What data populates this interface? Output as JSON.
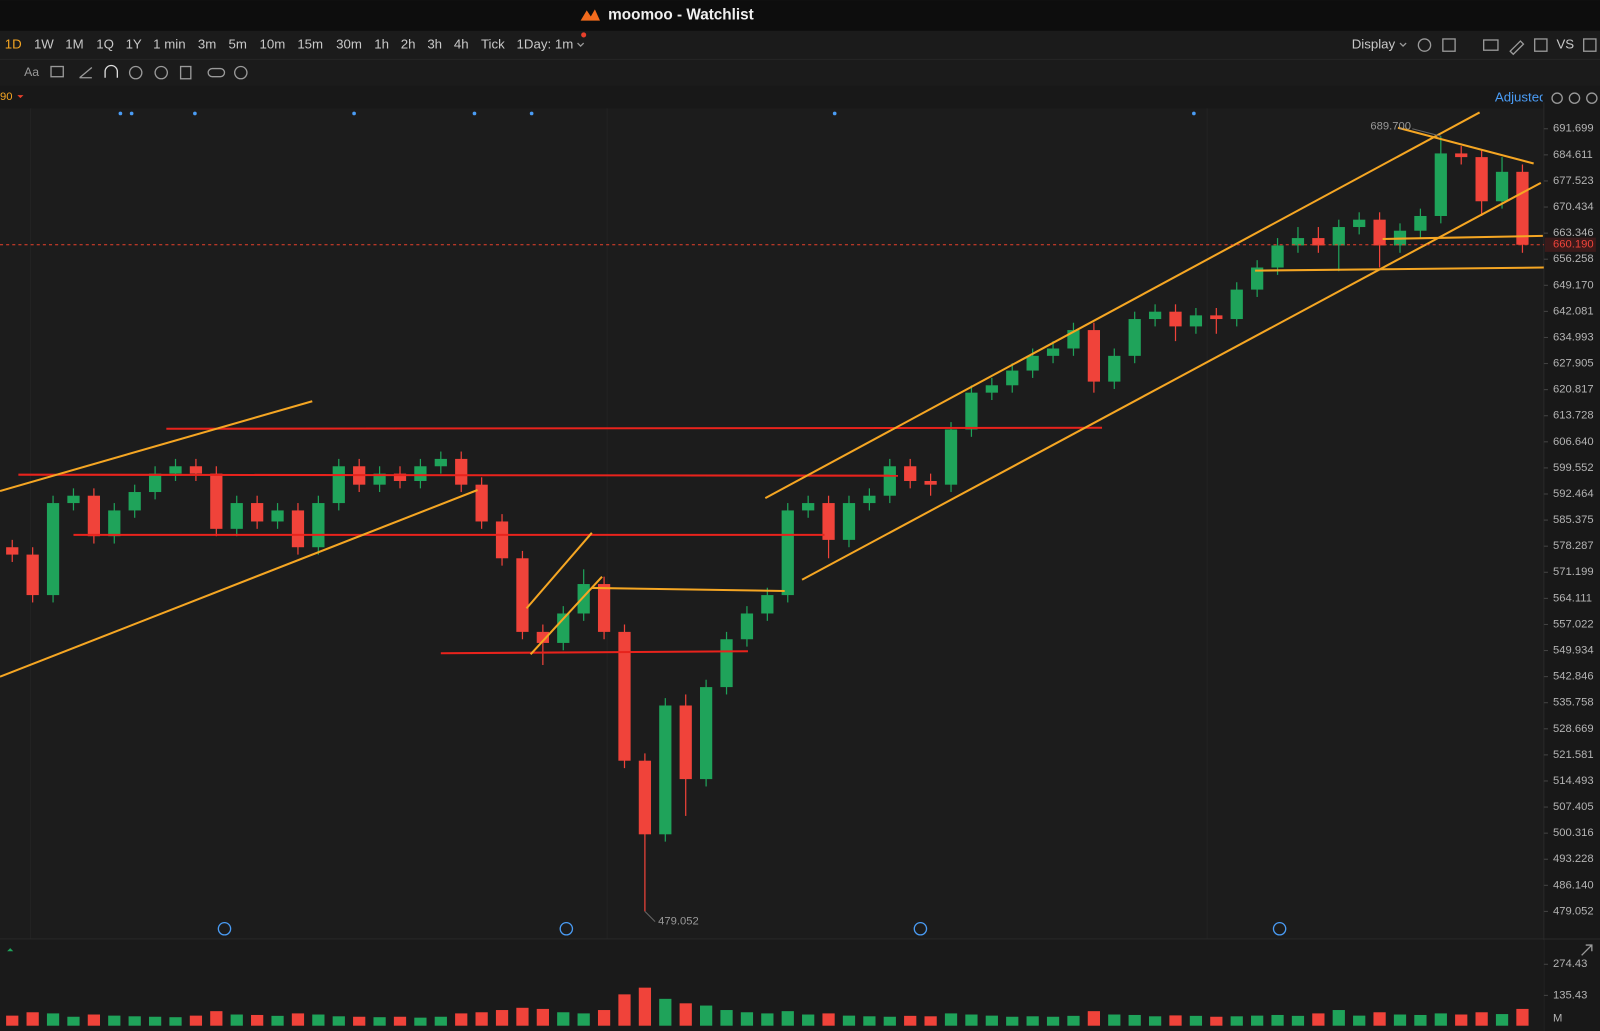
{
  "window": {
    "title": "moomoo - Watchlist"
  },
  "toolbar": {
    "periods": [
      "1D",
      "1W",
      "1M",
      "1Q",
      "1Y",
      "1 min",
      "3m",
      "5m",
      "10m",
      "15m",
      "30m",
      "1h",
      "2h",
      "3h",
      "4h",
      "Tick"
    ],
    "mode": "1Day: 1m",
    "display": "Display",
    "compare": "VS"
  },
  "drawing_tools": {
    "text_tool": "Aa"
  },
  "indicator": "90",
  "adjust": "Adjusted",
  "chart_data": [
    {
      "type": "candlestick",
      "open": [
        578,
        576,
        565,
        590,
        592,
        581,
        588,
        593,
        598,
        600,
        598,
        583,
        590,
        585,
        588,
        578,
        590,
        600,
        595,
        598,
        596,
        600,
        602,
        595,
        585,
        575,
        555,
        552,
        560,
        568,
        555,
        520,
        500,
        535,
        515,
        540,
        553,
        560,
        565,
        588,
        590,
        580,
        590,
        592,
        600,
        596,
        595,
        610,
        620,
        622,
        626,
        630,
        632,
        637,
        623,
        630,
        640,
        642,
        638,
        641,
        640,
        648,
        654,
        660,
        662,
        660,
        665,
        667,
        660,
        664,
        668,
        685,
        684,
        672,
        680
      ],
      "high": [
        580,
        578,
        592,
        594,
        594,
        590,
        595,
        600,
        602,
        602,
        600,
        592,
        592,
        590,
        590,
        592,
        602,
        602,
        600,
        600,
        602,
        604,
        604,
        597,
        587,
        577,
        557,
        562,
        572,
        570,
        557,
        522,
        537,
        538,
        542,
        555,
        562,
        567,
        590,
        592,
        592,
        592,
        594,
        602,
        602,
        598,
        612,
        622,
        624,
        628,
        632,
        634,
        639,
        639,
        632,
        642,
        644,
        644,
        643,
        643,
        650,
        656,
        662,
        665,
        665,
        667,
        669,
        669,
        666,
        670,
        689.7,
        687,
        686,
        684,
        682
      ],
      "low": [
        574,
        563,
        563,
        588,
        579,
        579,
        586,
        591,
        596,
        596,
        581,
        581,
        583,
        583,
        576,
        576,
        588,
        593,
        593,
        594,
        594,
        598,
        593,
        583,
        573,
        553,
        546,
        550,
        558,
        553,
        518,
        479.052,
        498,
        505,
        513,
        538,
        551,
        558,
        563,
        586,
        575,
        578,
        588,
        590,
        594,
        592,
        593,
        608,
        618,
        620,
        624,
        628,
        630,
        620,
        621,
        628,
        638,
        634,
        636,
        636,
        638,
        646,
        652,
        658,
        658,
        653,
        663,
        654,
        658,
        662,
        666,
        682,
        668,
        670,
        658
      ],
      "close": [
        576,
        565,
        590,
        592,
        581,
        588,
        593,
        598,
        600,
        598,
        583,
        590,
        585,
        588,
        578,
        590,
        600,
        595,
        598,
        596,
        600,
        602,
        595,
        585,
        575,
        555,
        552,
        560,
        568,
        555,
        520,
        500,
        535,
        515,
        540,
        553,
        560,
        565,
        588,
        590,
        580,
        590,
        592,
        600,
        596,
        595,
        610,
        620,
        622,
        626,
        630,
        632,
        637,
        623,
        630,
        640,
        642,
        638,
        641,
        640,
        648,
        654,
        660,
        662,
        660,
        665,
        667,
        660,
        664,
        668,
        685,
        684,
        672,
        680,
        660.19
      ],
      "up_color": "#1fa35a",
      "down_color": "#f0433a",
      "ylim": [
        472.12,
        696.69
      ],
      "yticks": [
        691.699,
        684.611,
        677.523,
        670.434,
        663.346,
        656.258,
        {
          "value": 649.17,
          "label": "649.170"
        },
        642.081,
        634.993,
        627.905,
        620.817,
        613.728,
        {
          "value": 606.64,
          "label": "606.640"
        },
        599.552,
        592.464,
        585.375,
        578.287,
        571.199,
        564.111,
        557.022,
        549.934,
        542.846,
        535.758,
        528.669,
        521.581,
        514.493,
        507.405,
        500.316,
        493.228,
        {
          "value": 486.14,
          "label": "486.140"
        },
        479.052
      ],
      "last_price": {
        "value": 660.19,
        "label": "660.190"
      },
      "high_marker": {
        "value": 689.7,
        "label": "689.700"
      },
      "low_marker": 479.052
    },
    {
      "type": "bar",
      "values": [
        45,
        60,
        55,
        40,
        50,
        45,
        42,
        40,
        38,
        45,
        65,
        50,
        48,
        44,
        55,
        50,
        42,
        40,
        38,
        40,
        36,
        40,
        55,
        60,
        70,
        80,
        75,
        60,
        55,
        70,
        140,
        170,
        120,
        100,
        90,
        70,
        60,
        55,
        65,
        50,
        55,
        45,
        42,
        40,
        44,
        42,
        55,
        50,
        45,
        40,
        42,
        40,
        44,
        65,
        50,
        48,
        42,
        46,
        44,
        40,
        42,
        45,
        48,
        44,
        55,
        70,
        45,
        60,
        50,
        48,
        55,
        50,
        60,
        52,
        75
      ],
      "ylim": [
        0,
        310
      ],
      "yticks": [
        135.43,
        274.43
      ],
      "unit": "M"
    }
  ]
}
